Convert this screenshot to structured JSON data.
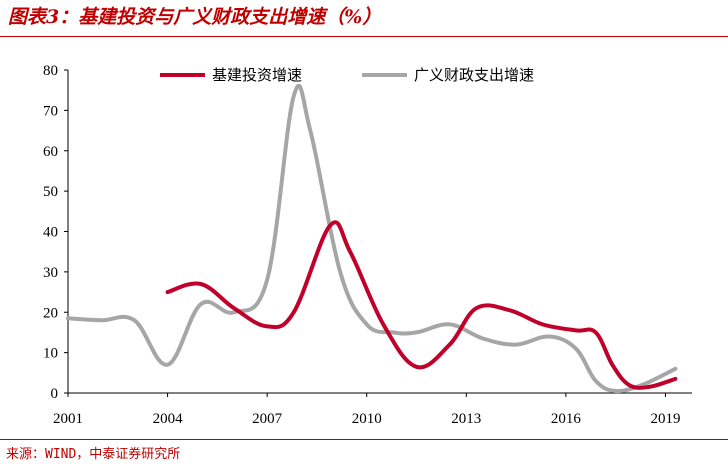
{
  "title": "图表3：基建投资与广义财政支出增速（%）",
  "source": "来源：WIND，中泰证券研究所",
  "colors": {
    "accent": "#c00000",
    "series1": "#c0002a",
    "series2": "#a6a6a6"
  },
  "chart_data": {
    "type": "line",
    "title": "",
    "xlabel": "",
    "ylabel": "",
    "ylim": [
      0,
      80
    ],
    "yticks": [
      0,
      10,
      20,
      30,
      40,
      50,
      60,
      70,
      80
    ],
    "xlim": [
      2001,
      2019.8
    ],
    "xticks": [
      2001,
      2004,
      2007,
      2010,
      2013,
      2016,
      2019
    ],
    "grid": false,
    "legend": "top",
    "series": [
      {
        "name": "基建投资增速",
        "color": "#c0002a",
        "x": [
          2004.0,
          2005.0,
          2006.0,
          2007.0,
          2007.8,
          2008.9,
          2009.5,
          2010.5,
          2011.5,
          2012.5,
          2013.3,
          2014.3,
          2015.3,
          2016.3,
          2016.9,
          2017.4,
          2017.9,
          2018.5,
          2019.3
        ],
        "y": [
          25,
          27,
          21,
          16.5,
          20,
          41.5,
          35,
          17,
          6.5,
          12,
          21,
          20.5,
          17,
          15.5,
          15,
          7,
          2,
          1.5,
          3.5
        ]
      },
      {
        "name": "广义财政支出增速",
        "color": "#a6a6a6",
        "x": [
          2001.0,
          2002.0,
          2003.0,
          2004.0,
          2005.0,
          2006.0,
          2007.0,
          2007.8,
          2008.3,
          2009.2,
          2010.0,
          2010.8,
          2011.5,
          2012.5,
          2013.5,
          2014.5,
          2015.5,
          2016.3,
          2016.9,
          2017.5,
          2018.3,
          2019.3
        ],
        "y": [
          18.5,
          18,
          18,
          7,
          22,
          20,
          28,
          73.5,
          65,
          30,
          17,
          15,
          15,
          17,
          13.5,
          12,
          14,
          11,
          3,
          0.5,
          2,
          6
        ]
      }
    ]
  }
}
